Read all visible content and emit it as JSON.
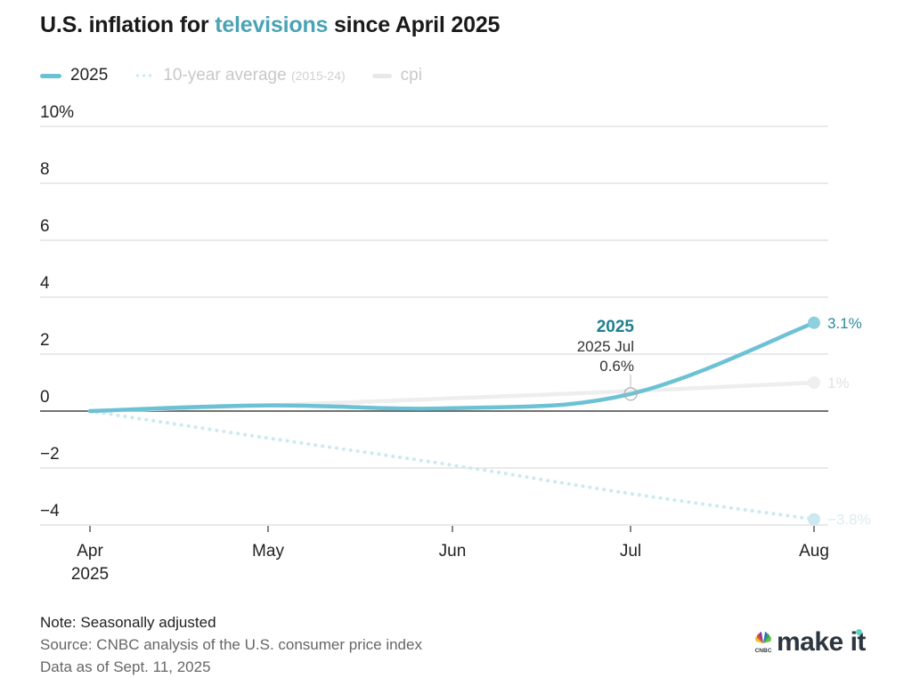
{
  "title": {
    "prefix": "U.S. inflation for ",
    "highlight": "televisions",
    "suffix": " since April 2025"
  },
  "legend": {
    "series_2025": "2025",
    "avg_label": "10-year average",
    "avg_sub": "(2015-24)",
    "cpi_label": "cpi"
  },
  "colors": {
    "series_2025": "#6cc2d4",
    "avg": "#cbe9ef",
    "cpi": "#eeeeee",
    "title_highlight": "#4aa3b5",
    "tooltip_title": "#1f7f8f"
  },
  "tooltip": {
    "series": "2025",
    "period": "2025 Jul",
    "value": "0.6%"
  },
  "end_labels": {
    "series_2025": "3.1%",
    "cpi": "1%",
    "avg": "−3.8%"
  },
  "footer": {
    "note": "Note: Seasonally adjusted",
    "source": "Source: CNBC analysis of the U.S. consumer price index",
    "data_as_of": "Data as of Sept. 11, 2025"
  },
  "logo": {
    "network": "CNBC",
    "brand": "make it"
  },
  "chart_data": {
    "type": "line",
    "title": "U.S. inflation for televisions since April 2025",
    "xlabel": "",
    "ylabel": "",
    "categories": [
      "Apr 2025",
      "May",
      "Jun",
      "Jul",
      "Aug"
    ],
    "x_tick_labels": [
      [
        "Apr",
        "2025"
      ],
      [
        "May"
      ],
      [
        "Jun"
      ],
      [
        "Jul"
      ],
      [
        "Aug"
      ]
    ],
    "y_ticks": [
      10,
      8,
      6,
      4,
      2,
      0,
      -2,
      -4
    ],
    "y_tick_labels": [
      "10%",
      "8",
      "6",
      "4",
      "2",
      "0",
      "−2",
      "−4"
    ],
    "ylim": [
      -4,
      10
    ],
    "grid": true,
    "legend_position": "top-left",
    "series": [
      {
        "name": "10-year average (2015-24)",
        "style": "dotted",
        "values": [
          0,
          -0.95,
          -1.9,
          -2.9,
          -3.8
        ]
      },
      {
        "name": "cpi",
        "style": "solid-light",
        "values": [
          0,
          0.2,
          0.45,
          0.7,
          1.0
        ]
      },
      {
        "name": "2025",
        "style": "solid",
        "values": [
          0,
          0.2,
          0.1,
          0.6,
          3.1
        ]
      }
    ]
  }
}
